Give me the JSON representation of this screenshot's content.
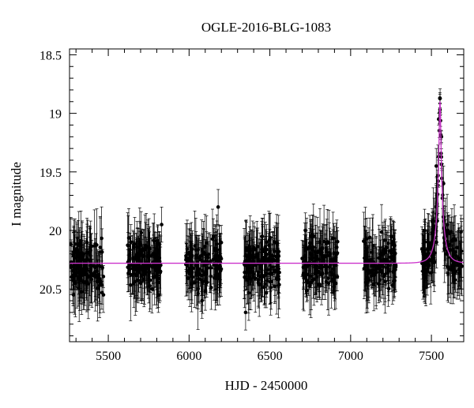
{
  "chart_data": {
    "type": "scatter",
    "title": "OGLE-2016-BLG-1083",
    "xlabel": "HJD - 2450000",
    "ylabel": "I magnitude",
    "xlim": [
      5260,
      7700
    ],
    "ylim": [
      20.95,
      18.45
    ],
    "y_inverted": true,
    "x_ticks": [
      5500,
      6000,
      6500,
      7000,
      7500
    ],
    "y_ticks": [
      18.5,
      19,
      19.5,
      20,
      20.5
    ],
    "x_tick_labels": [
      "5500",
      "6000",
      "6500",
      "7000",
      "7500"
    ],
    "y_tick_labels": [
      "18.5",
      "19",
      "19.5",
      "20",
      "20.5"
    ],
    "grid": false,
    "colors": {
      "points": "#000000",
      "model": "#cc33cc"
    },
    "model": {
      "type": "microlensing",
      "t0": 7553,
      "u0": 0.105,
      "tE": 50,
      "baseline": 20.28,
      "blend_fraction": 0.3
    },
    "season_windows": [
      [
        5265,
        5470
      ],
      [
        5620,
        5830
      ],
      [
        5980,
        6200
      ],
      [
        6340,
        6560
      ],
      [
        6700,
        6920
      ],
      [
        7080,
        7280
      ],
      [
        7440,
        7690
      ]
    ],
    "representative_points": [
      {
        "x": 5285,
        "y": 20.55
      },
      {
        "x": 5300,
        "y": 20.33
      },
      {
        "x": 5330,
        "y": 20.42
      },
      {
        "x": 5350,
        "y": 20.2
      },
      {
        "x": 5390,
        "y": 20.3
      },
      {
        "x": 5440,
        "y": 20.4
      },
      {
        "x": 5470,
        "y": 20.55
      },
      {
        "x": 5640,
        "y": 20.1
      },
      {
        "x": 5700,
        "y": 20.45
      },
      {
        "x": 5750,
        "y": 20.15
      },
      {
        "x": 5810,
        "y": 20.55
      },
      {
        "x": 5830,
        "y": 19.95
      },
      {
        "x": 6000,
        "y": 20.35
      },
      {
        "x": 6080,
        "y": 20.6
      },
      {
        "x": 6150,
        "y": 20.05
      },
      {
        "x": 6180,
        "y": 19.8
      },
      {
        "x": 6350,
        "y": 20.7
      },
      {
        "x": 6400,
        "y": 20.4
      },
      {
        "x": 6480,
        "y": 20.1
      },
      {
        "x": 6550,
        "y": 20.3
      },
      {
        "x": 6720,
        "y": 20.0
      },
      {
        "x": 6800,
        "y": 20.35
      },
      {
        "x": 6850,
        "y": 20.15
      },
      {
        "x": 6900,
        "y": 20.45
      },
      {
        "x": 7100,
        "y": 20.45
      },
      {
        "x": 7160,
        "y": 20.3
      },
      {
        "x": 7250,
        "y": 20.05
      },
      {
        "x": 7460,
        "y": 20.4
      },
      {
        "x": 7510,
        "y": 20.0
      },
      {
        "x": 7530,
        "y": 19.45
      },
      {
        "x": 7545,
        "y": 19.05
      },
      {
        "x": 7553,
        "y": 18.97
      },
      {
        "x": 7562,
        "y": 19.2
      },
      {
        "x": 7575,
        "y": 19.6
      },
      {
        "x": 7600,
        "y": 20.0
      },
      {
        "x": 7640,
        "y": 20.3
      },
      {
        "x": 7680,
        "y": 20.25
      }
    ]
  }
}
